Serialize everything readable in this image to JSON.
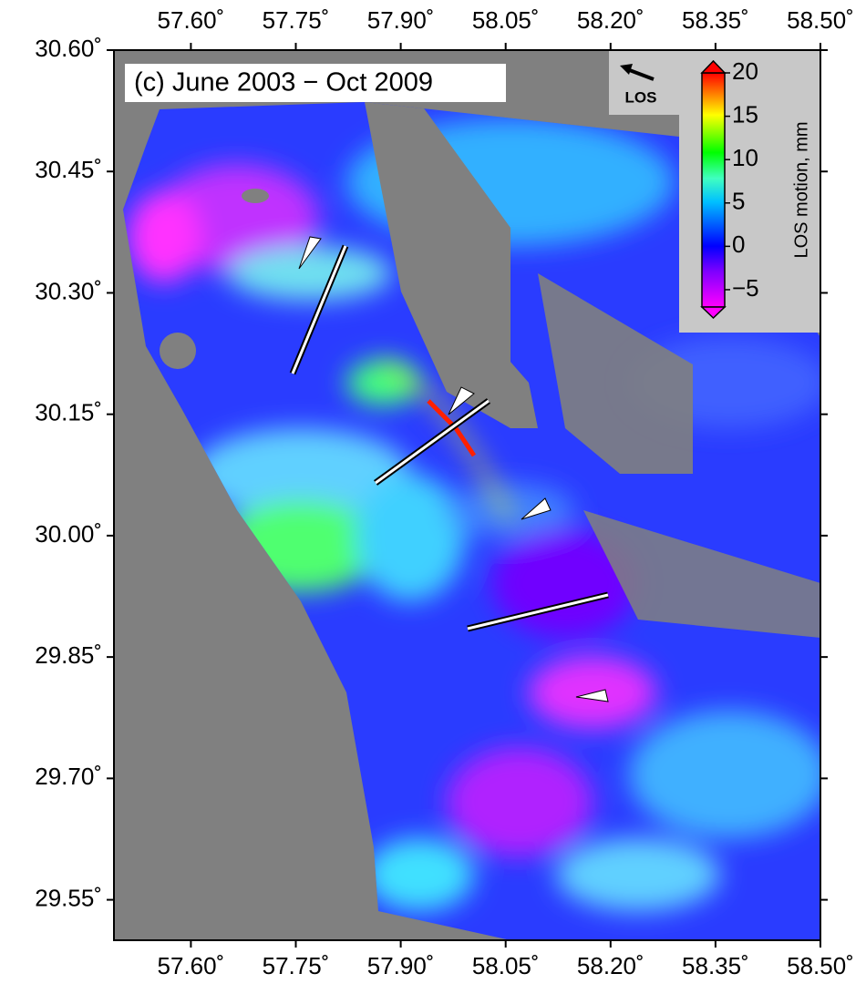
{
  "map": {
    "title": "(c) June 2003 − Oct 2009",
    "xlim": [
      57.49,
      58.5
    ],
    "ylim": [
      29.5,
      30.6
    ],
    "xticks": [
      {
        "value": 57.6,
        "label": "57.60˚"
      },
      {
        "value": 57.75,
        "label": "57.75˚"
      },
      {
        "value": 57.9,
        "label": "57.90˚"
      },
      {
        "value": 58.05,
        "label": "58.05˚"
      },
      {
        "value": 58.2,
        "label": "58.20˚"
      },
      {
        "value": 58.35,
        "label": "58.35˚"
      },
      {
        "value": 58.5,
        "label": "58.50˚"
      }
    ],
    "yticks": [
      {
        "value": 30.6,
        "label": "30.60˚"
      },
      {
        "value": 30.45,
        "label": "30.45˚"
      },
      {
        "value": 30.3,
        "label": "30.30˚"
      },
      {
        "value": 30.15,
        "label": "30.15˚"
      },
      {
        "value": 30.0,
        "label": "30.00˚"
      },
      {
        "value": 29.85,
        "label": "29.85˚"
      },
      {
        "value": 29.7,
        "label": "29.70˚"
      },
      {
        "value": 29.55,
        "label": "29.55˚"
      }
    ],
    "los_label": "LOS",
    "colorbar": {
      "label": "LOS motion, mm",
      "clim": [
        -7,
        20
      ],
      "ticks": [
        20,
        15,
        10,
        5,
        0,
        {
          "value": -5,
          "label": "−5"
        }
      ]
    }
  }
}
